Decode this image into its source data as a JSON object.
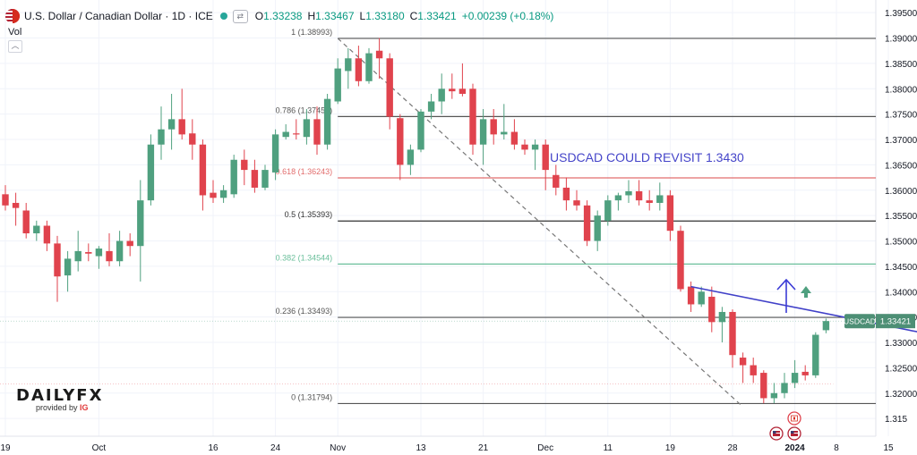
{
  "header": {
    "title": "U.S. Dollar / Canadian Dollar · 1D · ICE",
    "o_label": "O",
    "o_value": "1.33238",
    "h_label": "H",
    "h_value": "1.33467",
    "l_label": "L",
    "l_value": "1.33180",
    "c_label": "C",
    "c_value": "1.33421",
    "change": "+0.00239 (+0.18%)",
    "vol_label": "Vol"
  },
  "logo": {
    "brand": "DAILYFX",
    "provided_by": "provided by",
    "ig": "IG"
  },
  "chart_data": {
    "type": "candlestick",
    "symbol": "USDCAD",
    "last_price": "1.33421",
    "annotation": "USDCAD COULD REVISIT 1.3430",
    "y_range": [
      1.3115,
      1.3975
    ],
    "y_ticks": [
      "1.39500",
      "1.39000",
      "1.38500",
      "1.38000",
      "1.37500",
      "1.37000",
      "1.36500",
      "1.36000",
      "1.35500",
      "1.35000",
      "1.34500",
      "1.34000",
      "1.33500",
      "1.33000",
      "1.32500",
      "1.32000",
      "1.315"
    ],
    "x_ticks": [
      {
        "label": "19",
        "i": 0
      },
      {
        "label": "Oct",
        "i": 9
      },
      {
        "label": "16",
        "i": 20
      },
      {
        "label": "24",
        "i": 26
      },
      {
        "label": "Nov",
        "i": 32
      },
      {
        "label": "13",
        "i": 40
      },
      {
        "label": "21",
        "i": 46
      },
      {
        "label": "Dec",
        "i": 52
      },
      {
        "label": "11",
        "i": 58
      },
      {
        "label": "19",
        "i": 64
      },
      {
        "label": "28",
        "i": 70
      },
      {
        "label": "2024",
        "i": 76
      },
      {
        "label": "8",
        "i": 80
      },
      {
        "label": "15",
        "i": 85
      }
    ],
    "fibonacci": [
      {
        "label": "1 (1.38993)",
        "value": 1.38993,
        "color": "#555555"
      },
      {
        "label": "0.786 (1.37452)",
        "value": 1.37452,
        "color": "#555555"
      },
      {
        "label": "0.618 (1.36243)",
        "value": 1.36243,
        "color": "#e26d6d"
      },
      {
        "label": "0.5 (1.35393)",
        "value": 1.35393,
        "color": "#333333"
      },
      {
        "label": "0.382 (1.34544)",
        "value": 1.34544,
        "color": "#6abf9b"
      },
      {
        "label": "0.236 (1.33493)",
        "value": 1.33493,
        "color": "#555555"
      },
      {
        "label": "0 (1.31794)",
        "value": 1.31794,
        "color": "#555555"
      }
    ],
    "colors": {
      "up": "#4fa07f",
      "down": "#e0434d",
      "trendline": "#4040c8",
      "arrow": "#3b3bd6",
      "arrow_up": "#4fa07f",
      "grid": "#f0f3fa",
      "price_tag": "#4d8f75"
    },
    "candles": [
      {
        "i": 0,
        "o": 1.3592,
        "h": 1.361,
        "l": 1.356,
        "c": 1.357
      },
      {
        "i": 1,
        "o": 1.3575,
        "h": 1.3595,
        "l": 1.353,
        "c": 1.3565
      },
      {
        "i": 2,
        "o": 1.356,
        "h": 1.3575,
        "l": 1.3505,
        "c": 1.3515
      },
      {
        "i": 3,
        "o": 1.3515,
        "h": 1.354,
        "l": 1.35,
        "c": 1.353
      },
      {
        "i": 4,
        "o": 1.353,
        "h": 1.354,
        "l": 1.348,
        "c": 1.3495
      },
      {
        "i": 5,
        "o": 1.3495,
        "h": 1.351,
        "l": 1.338,
        "c": 1.343
      },
      {
        "i": 6,
        "o": 1.3432,
        "h": 1.348,
        "l": 1.34,
        "c": 1.3465
      },
      {
        "i": 7,
        "o": 1.346,
        "h": 1.352,
        "l": 1.344,
        "c": 1.348
      },
      {
        "i": 8,
        "o": 1.3478,
        "h": 1.3495,
        "l": 1.346,
        "c": 1.3475
      },
      {
        "i": 9,
        "o": 1.347,
        "h": 1.349,
        "l": 1.3445,
        "c": 1.3485
      },
      {
        "i": 10,
        "o": 1.348,
        "h": 1.3515,
        "l": 1.345,
        "c": 1.346
      },
      {
        "i": 11,
        "o": 1.346,
        "h": 1.352,
        "l": 1.345,
        "c": 1.35
      },
      {
        "i": 12,
        "o": 1.35,
        "h": 1.3515,
        "l": 1.347,
        "c": 1.349
      },
      {
        "i": 13,
        "o": 1.349,
        "h": 1.362,
        "l": 1.342,
        "c": 1.358
      },
      {
        "i": 14,
        "o": 1.358,
        "h": 1.371,
        "l": 1.357,
        "c": 1.369
      },
      {
        "i": 15,
        "o": 1.369,
        "h": 1.3765,
        "l": 1.366,
        "c": 1.372
      },
      {
        "i": 16,
        "o": 1.372,
        "h": 1.379,
        "l": 1.368,
        "c": 1.374
      },
      {
        "i": 17,
        "o": 1.374,
        "h": 1.38,
        "l": 1.37,
        "c": 1.371
      },
      {
        "i": 18,
        "o": 1.3712,
        "h": 1.374,
        "l": 1.366,
        "c": 1.369
      },
      {
        "i": 19,
        "o": 1.369,
        "h": 1.37,
        "l": 1.356,
        "c": 1.359
      },
      {
        "i": 20,
        "o": 1.3595,
        "h": 1.362,
        "l": 1.3575,
        "c": 1.3585
      },
      {
        "i": 21,
        "o": 1.3585,
        "h": 1.361,
        "l": 1.3575,
        "c": 1.36
      },
      {
        "i": 22,
        "o": 1.3592,
        "h": 1.367,
        "l": 1.3585,
        "c": 1.366
      },
      {
        "i": 23,
        "o": 1.366,
        "h": 1.368,
        "l": 1.361,
        "c": 1.364
      },
      {
        "i": 24,
        "o": 1.364,
        "h": 1.366,
        "l": 1.3595,
        "c": 1.3605
      },
      {
        "i": 25,
        "o": 1.3605,
        "h": 1.365,
        "l": 1.36,
        "c": 1.364
      },
      {
        "i": 26,
        "o": 1.3635,
        "h": 1.372,
        "l": 1.362,
        "c": 1.371
      },
      {
        "i": 27,
        "o": 1.3705,
        "h": 1.373,
        "l": 1.37,
        "c": 1.3715
      },
      {
        "i": 28,
        "o": 1.3712,
        "h": 1.374,
        "l": 1.37,
        "c": 1.371
      },
      {
        "i": 29,
        "o": 1.3705,
        "h": 1.376,
        "l": 1.369,
        "c": 1.374
      },
      {
        "i": 30,
        "o": 1.374,
        "h": 1.3765,
        "l": 1.367,
        "c": 1.369
      },
      {
        "i": 31,
        "o": 1.369,
        "h": 1.379,
        "l": 1.368,
        "c": 1.378
      },
      {
        "i": 32,
        "o": 1.3775,
        "h": 1.386,
        "l": 1.377,
        "c": 1.384
      },
      {
        "i": 33,
        "o": 1.3835,
        "h": 1.388,
        "l": 1.38,
        "c": 1.386
      },
      {
        "i": 34,
        "o": 1.386,
        "h": 1.3885,
        "l": 1.3805,
        "c": 1.3815
      },
      {
        "i": 35,
        "o": 1.3815,
        "h": 1.388,
        "l": 1.381,
        "c": 1.387
      },
      {
        "i": 36,
        "o": 1.3875,
        "h": 1.39,
        "l": 1.382,
        "c": 1.386
      },
      {
        "i": 37,
        "o": 1.386,
        "h": 1.387,
        "l": 1.372,
        "c": 1.3745
      },
      {
        "i": 38,
        "o": 1.3742,
        "h": 1.375,
        "l": 1.362,
        "c": 1.365
      },
      {
        "i": 39,
        "o": 1.365,
        "h": 1.369,
        "l": 1.363,
        "c": 1.368
      },
      {
        "i": 40,
        "o": 1.368,
        "h": 1.376,
        "l": 1.3675,
        "c": 1.3755
      },
      {
        "i": 41,
        "o": 1.3755,
        "h": 1.379,
        "l": 1.374,
        "c": 1.3775
      },
      {
        "i": 42,
        "o": 1.3775,
        "h": 1.383,
        "l": 1.375,
        "c": 1.38
      },
      {
        "i": 43,
        "o": 1.38,
        "h": 1.383,
        "l": 1.378,
        "c": 1.3795
      },
      {
        "i": 44,
        "o": 1.38,
        "h": 1.385,
        "l": 1.3785,
        "c": 1.379
      },
      {
        "i": 45,
        "o": 1.38,
        "h": 1.381,
        "l": 1.367,
        "c": 1.369
      },
      {
        "i": 46,
        "o": 1.369,
        "h": 1.376,
        "l": 1.365,
        "c": 1.374
      },
      {
        "i": 47,
        "o": 1.374,
        "h": 1.376,
        "l": 1.369,
        "c": 1.371
      },
      {
        "i": 48,
        "o": 1.371,
        "h": 1.377,
        "l": 1.37,
        "c": 1.3715
      },
      {
        "i": 49,
        "o": 1.3715,
        "h": 1.374,
        "l": 1.368,
        "c": 1.369
      },
      {
        "i": 50,
        "o": 1.369,
        "h": 1.37,
        "l": 1.367,
        "c": 1.368
      },
      {
        "i": 51,
        "o": 1.368,
        "h": 1.37,
        "l": 1.364,
        "c": 1.369
      },
      {
        "i": 52,
        "o": 1.369,
        "h": 1.37,
        "l": 1.36,
        "c": 1.364
      },
      {
        "i": 53,
        "o": 1.363,
        "h": 1.365,
        "l": 1.359,
        "c": 1.3605
      },
      {
        "i": 54,
        "o": 1.3605,
        "h": 1.3625,
        "l": 1.356,
        "c": 1.358
      },
      {
        "i": 55,
        "o": 1.358,
        "h": 1.36,
        "l": 1.356,
        "c": 1.357
      },
      {
        "i": 56,
        "o": 1.357,
        "h": 1.358,
        "l": 1.349,
        "c": 1.35
      },
      {
        "i": 57,
        "o": 1.35,
        "h": 1.356,
        "l": 1.348,
        "c": 1.355
      },
      {
        "i": 58,
        "o": 1.354,
        "h": 1.359,
        "l": 1.353,
        "c": 1.358
      },
      {
        "i": 59,
        "o": 1.358,
        "h": 1.3595,
        "l": 1.356,
        "c": 1.359
      },
      {
        "i": 60,
        "o": 1.359,
        "h": 1.362,
        "l": 1.3575,
        "c": 1.3598
      },
      {
        "i": 61,
        "o": 1.3598,
        "h": 1.362,
        "l": 1.357,
        "c": 1.358
      },
      {
        "i": 62,
        "o": 1.358,
        "h": 1.36,
        "l": 1.356,
        "c": 1.3575
      },
      {
        "i": 63,
        "o": 1.3575,
        "h": 1.3615,
        "l": 1.356,
        "c": 1.359
      },
      {
        "i": 64,
        "o": 1.359,
        "h": 1.36,
        "l": 1.35,
        "c": 1.352
      },
      {
        "i": 65,
        "o": 1.352,
        "h": 1.353,
        "l": 1.34,
        "c": 1.3405
      },
      {
        "i": 66,
        "o": 1.341,
        "h": 1.342,
        "l": 1.336,
        "c": 1.3375
      },
      {
        "i": 67,
        "o": 1.3375,
        "h": 1.341,
        "l": 1.337,
        "c": 1.34
      },
      {
        "i": 68,
        "o": 1.339,
        "h": 1.341,
        "l": 1.332,
        "c": 1.334
      },
      {
        "i": 69,
        "o": 1.334,
        "h": 1.337,
        "l": 1.33,
        "c": 1.336
      },
      {
        "i": 70,
        "o": 1.336,
        "h": 1.3365,
        "l": 1.325,
        "c": 1.3275
      },
      {
        "i": 71,
        "o": 1.327,
        "h": 1.328,
        "l": 1.322,
        "c": 1.3255
      },
      {
        "i": 72,
        "o": 1.3255,
        "h": 1.327,
        "l": 1.322,
        "c": 1.3235
      },
      {
        "i": 73,
        "o": 1.324,
        "h": 1.3245,
        "l": 1.318,
        "c": 1.319
      },
      {
        "i": 74,
        "o": 1.319,
        "h": 1.322,
        "l": 1.318,
        "c": 1.32
      },
      {
        "i": 75,
        "o": 1.32,
        "h": 1.324,
        "l": 1.319,
        "c": 1.322
      },
      {
        "i": 76,
        "o": 1.322,
        "h": 1.3265,
        "l": 1.321,
        "c": 1.324
      },
      {
        "i": 77,
        "o": 1.3242,
        "h": 1.3255,
        "l": 1.3225,
        "c": 1.3235
      },
      {
        "i": 78,
        "o": 1.3235,
        "h": 1.332,
        "l": 1.323,
        "c": 1.3315
      },
      {
        "i": 79,
        "o": 1.3324,
        "h": 1.3347,
        "l": 1.3318,
        "c": 1.3342
      }
    ],
    "fib_anchor": {
      "from_i": 32,
      "from_value": 1.38993,
      "to_i": 73,
      "to_value": 1.31794
    },
    "trendline": {
      "from_i": 66,
      "from_value": 1.341,
      "to_i": 88,
      "to_value": 1.332
    }
  }
}
